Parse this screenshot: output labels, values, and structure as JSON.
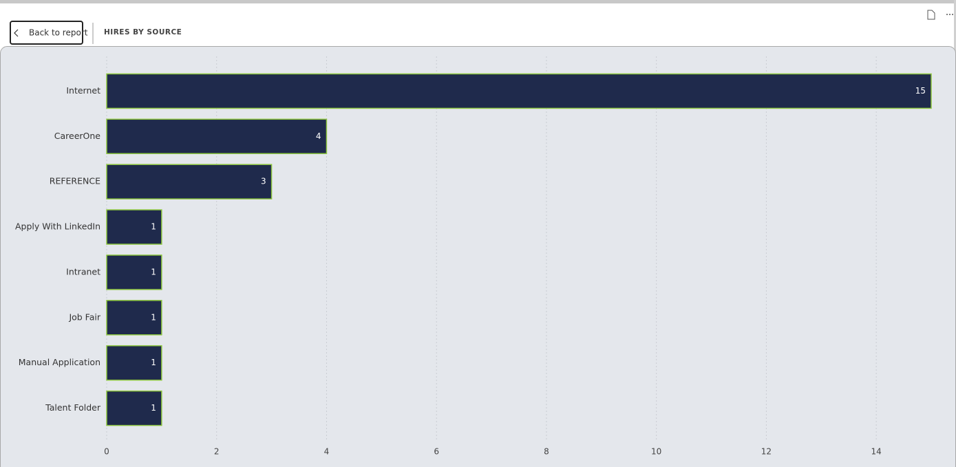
{
  "header": {
    "back_button": "Back to report",
    "title": "HIRES BY SOURCE"
  },
  "chart_data": {
    "type": "bar",
    "orientation": "horizontal",
    "categories": [
      "Internet",
      "CareerOne",
      "REFERENCE",
      "Apply With LinkedIn",
      "Intranet",
      "Job Fair",
      "Manual Application",
      "Talent Folder"
    ],
    "values": [
      15,
      4,
      3,
      1,
      1,
      1,
      1,
      1
    ],
    "color": "#1f2a4c",
    "edge_color": "#8dc63f",
    "xlim": [
      0,
      15
    ],
    "xticks": [
      0,
      2,
      4,
      6,
      8,
      10,
      12,
      14
    ],
    "grid": true
  }
}
